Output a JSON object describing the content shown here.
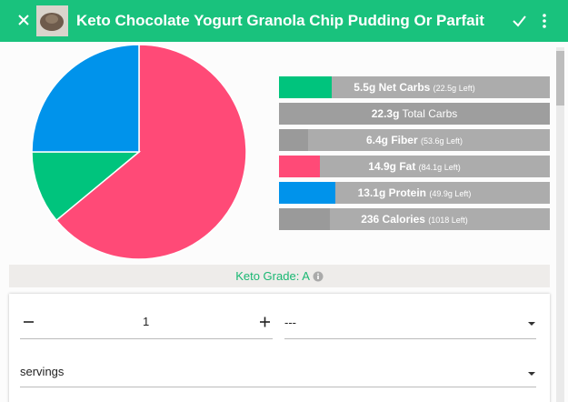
{
  "header": {
    "title": "Keto Chocolate Yogurt Granola Chip Pudding Or Parfait"
  },
  "chart_data": {
    "type": "pie",
    "categories": [
      "Fat",
      "Net Carbs",
      "Protein"
    ],
    "values": [
      64,
      11,
      25
    ],
    "colors": [
      "#ff4a77",
      "#00c47d",
      "#0093eb"
    ]
  },
  "macros": [
    {
      "bold": "5.5g Net Carbs",
      "note": "(22.5g Left)",
      "fill": 19.6,
      "color": "#00c47d"
    },
    {
      "bold": "22.3g",
      "label": "Total Carbs",
      "fill": 100,
      "color": "#9e9e9e"
    },
    {
      "bold": "6.4g Fiber",
      "note": "(53.6g Left)",
      "fill": 10.7,
      "color": "#9a9a9a"
    },
    {
      "bold": "14.9g Fat",
      "note": "(84.1g Left)",
      "fill": 15,
      "color": "#ff4a77"
    },
    {
      "bold": "13.1g Protein",
      "note": "(49.9g Left)",
      "fill": 20.8,
      "color": "#0093eb"
    },
    {
      "bold": "236 Calories",
      "note": "(1018 Left)",
      "fill": 18.8,
      "color": "#9a9a9a"
    }
  ],
  "keto_grade": "Keto Grade: A",
  "serving": {
    "quantity": "1",
    "unit": "---",
    "type": "servings"
  }
}
